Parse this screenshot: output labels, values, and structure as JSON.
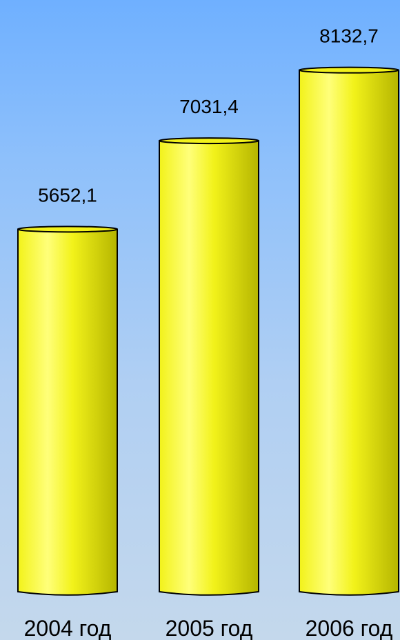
{
  "chart_data": {
    "type": "bar",
    "style": "3d-cylinder",
    "categories": [
      "2004 год",
      "2005 год",
      "2006 год"
    ],
    "values": [
      5652.1,
      7031.4,
      8132.7
    ],
    "value_labels": [
      "5652,1",
      "7031,4",
      "8132,7"
    ],
    "title": "",
    "xlabel": "",
    "ylabel": "",
    "ylim": [
      0,
      9000
    ],
    "grid": false,
    "legend": "none",
    "colors": {
      "bar": "#f2f21a",
      "bar_highlight": "#ffff7a",
      "bar_shadow": "#b5b500",
      "outline": "#000000",
      "background_top": "#6fb0ff",
      "background_bottom": "#c4d8ec"
    }
  }
}
